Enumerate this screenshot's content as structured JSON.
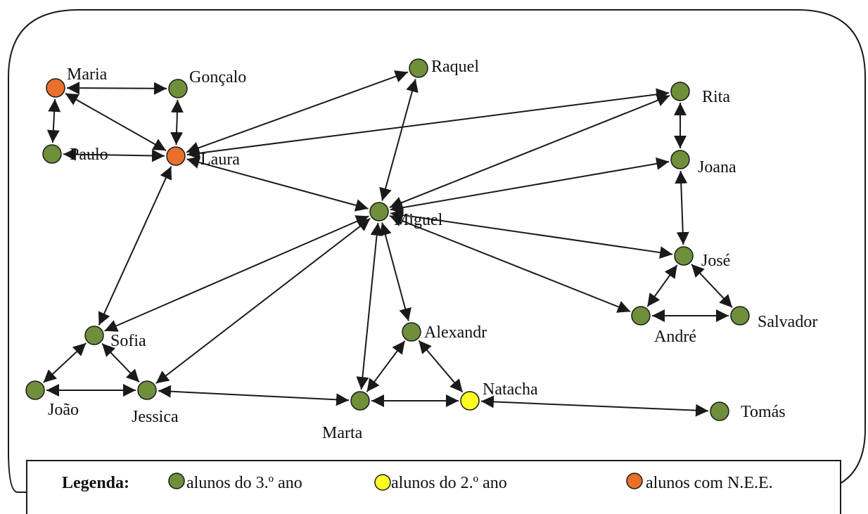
{
  "colors": {
    "third_year": "#6f8f3a",
    "second_year": "#ffff22",
    "nee": "#e8702c",
    "stroke": "#1a1a1a"
  },
  "nodes": [
    {
      "id": "maria",
      "label": "Maria",
      "group": "nee"
    },
    {
      "id": "goncalo",
      "label": "Gonçalo",
      "group": "third_year"
    },
    {
      "id": "paulo",
      "label": "Paulo",
      "group": "third_year"
    },
    {
      "id": "laura",
      "label": "Laura",
      "group": "nee"
    },
    {
      "id": "raquel",
      "label": "Raquel",
      "group": "third_year"
    },
    {
      "id": "rita",
      "label": "Rita",
      "group": "third_year"
    },
    {
      "id": "joana",
      "label": "Joana",
      "group": "third_year"
    },
    {
      "id": "miguel",
      "label": "Miguel",
      "group": "third_year"
    },
    {
      "id": "jose",
      "label": "José",
      "group": "third_year"
    },
    {
      "id": "andre",
      "label": "André",
      "group": "third_year"
    },
    {
      "id": "salvador",
      "label": "Salvador",
      "group": "third_year"
    },
    {
      "id": "sofia",
      "label": "Sofia",
      "group": "third_year"
    },
    {
      "id": "joao",
      "label": "João",
      "group": "third_year"
    },
    {
      "id": "jessica",
      "label": "Jessica",
      "group": "third_year"
    },
    {
      "id": "alexandr",
      "label": "Alexandr",
      "group": "third_year"
    },
    {
      "id": "marta",
      "label": "Marta",
      "group": "third_year"
    },
    {
      "id": "natacha",
      "label": "Natacha",
      "group": "second_year"
    },
    {
      "id": "tomas",
      "label": "Tomás",
      "group": "third_year"
    }
  ],
  "edges": [
    [
      "maria",
      "goncalo"
    ],
    [
      "maria",
      "paulo"
    ],
    [
      "maria",
      "laura"
    ],
    [
      "goncalo",
      "laura"
    ],
    [
      "paulo",
      "laura"
    ],
    [
      "laura",
      "raquel"
    ],
    [
      "laura",
      "rita"
    ],
    [
      "laura",
      "miguel"
    ],
    [
      "laura",
      "sofia"
    ],
    [
      "raquel",
      "miguel"
    ],
    [
      "rita",
      "miguel"
    ],
    [
      "rita",
      "joana"
    ],
    [
      "joana",
      "miguel"
    ],
    [
      "joana",
      "jose"
    ],
    [
      "jose",
      "miguel"
    ],
    [
      "jose",
      "andre"
    ],
    [
      "jose",
      "salvador"
    ],
    [
      "andre",
      "salvador"
    ],
    [
      "andre",
      "miguel"
    ],
    [
      "miguel",
      "sofia"
    ],
    [
      "miguel",
      "jessica"
    ],
    [
      "miguel",
      "marta"
    ],
    [
      "miguel",
      "alexandr"
    ],
    [
      "sofia",
      "joao"
    ],
    [
      "sofia",
      "jessica"
    ],
    [
      "joao",
      "jessica"
    ],
    [
      "jessica",
      "marta"
    ],
    [
      "alexandr",
      "marta"
    ],
    [
      "alexandr",
      "natacha"
    ],
    [
      "marta",
      "natacha"
    ],
    [
      "natacha",
      "tomas"
    ]
  ],
  "legend": {
    "title": "Legenda:",
    "items": [
      {
        "group": "third_year",
        "label": "alunos do 3.º ano"
      },
      {
        "group": "second_year",
        "label": "alunos do 2.º ano"
      },
      {
        "group": "nee",
        "label": "alunos  com N.E.E."
      }
    ]
  }
}
